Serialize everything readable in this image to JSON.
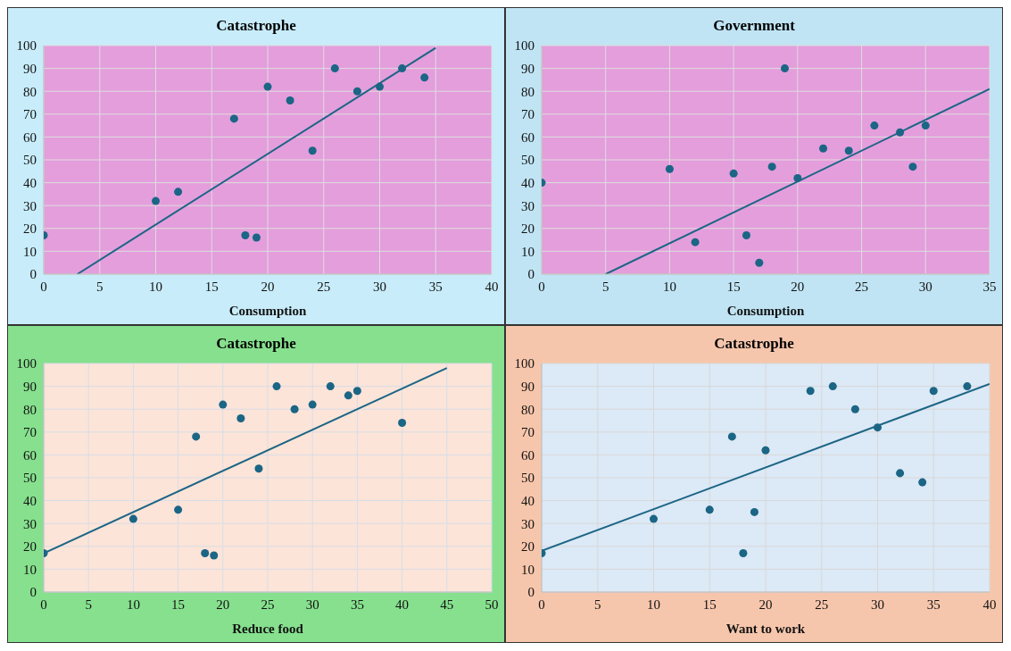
{
  "chart_data": [
    {
      "type": "scatter",
      "title": "Catastrophe",
      "xlabel": "Consumption",
      "xlim": [
        0,
        40
      ],
      "xticks": [
        0,
        5,
        10,
        15,
        20,
        25,
        30,
        35,
        40
      ],
      "ylim": [
        0,
        100
      ],
      "yticks": [
        0,
        10,
        20,
        30,
        40,
        50,
        60,
        70,
        80,
        90,
        100
      ],
      "grid": true,
      "series": [
        {
          "marker": "circle",
          "color": "#1b6585",
          "x": [
            0,
            10,
            12,
            17,
            18,
            19,
            20,
            22,
            24,
            26,
            28,
            30,
            32,
            34
          ],
          "values": [
            17,
            32,
            36,
            68,
            17,
            16,
            82,
            76,
            54,
            90,
            80,
            82,
            90,
            86
          ]
        },
        {
          "type": "line",
          "marker": "none",
          "color": "#1b6585",
          "x": [
            3,
            35
          ],
          "values": [
            0,
            99
          ]
        }
      ]
    },
    {
      "type": "scatter",
      "title": "Government",
      "xlabel": "Consumption",
      "xlim": [
        0,
        35
      ],
      "xticks": [
        0,
        5,
        10,
        15,
        20,
        25,
        30,
        35
      ],
      "ylim": [
        0,
        100
      ],
      "yticks": [
        0,
        10,
        20,
        30,
        40,
        50,
        60,
        70,
        80,
        90,
        100
      ],
      "grid": true,
      "series": [
        {
          "marker": "circle",
          "color": "#1b6585",
          "x": [
            0,
            10,
            12,
            15,
            16,
            17,
            18,
            19,
            20,
            22,
            24,
            26,
            28,
            29,
            30
          ],
          "values": [
            40,
            46,
            14,
            44,
            17,
            5,
            47,
            90,
            42,
            55,
            54,
            65,
            62,
            47,
            65
          ]
        },
        {
          "type": "line",
          "marker": "none",
          "color": "#1b6585",
          "x": [
            5,
            35
          ],
          "values": [
            0,
            81
          ]
        }
      ]
    },
    {
      "type": "scatter",
      "title": "Catastrophe",
      "xlabel": "Reduce food",
      "xlim": [
        0,
        50
      ],
      "xticks": [
        0,
        5,
        10,
        15,
        20,
        25,
        30,
        35,
        40,
        45,
        50
      ],
      "ylim": [
        0,
        100
      ],
      "yticks": [
        0,
        10,
        20,
        30,
        40,
        50,
        60,
        70,
        80,
        90,
        100
      ],
      "grid": true,
      "series": [
        {
          "marker": "circle",
          "color": "#1b6585",
          "x": [
            0,
            10,
            15,
            17,
            18,
            19,
            20,
            22,
            24,
            26,
            28,
            30,
            32,
            34,
            35,
            40
          ],
          "values": [
            17,
            32,
            36,
            68,
            17,
            16,
            82,
            76,
            54,
            90,
            80,
            82,
            90,
            86,
            88,
            74
          ]
        },
        {
          "type": "line",
          "marker": "none",
          "color": "#1b6585",
          "x": [
            0,
            45
          ],
          "values": [
            17,
            98
          ]
        }
      ]
    },
    {
      "type": "scatter",
      "title": "Catastrophe",
      "xlabel": "Want to work",
      "xlim": [
        0,
        40
      ],
      "xticks": [
        0,
        5,
        10,
        15,
        20,
        25,
        30,
        35,
        40
      ],
      "ylim": [
        0,
        100
      ],
      "yticks": [
        0,
        10,
        20,
        30,
        40,
        50,
        60,
        70,
        80,
        90,
        100
      ],
      "grid": true,
      "series": [
        {
          "marker": "circle",
          "color": "#1b6585",
          "x": [
            0,
            10,
            15,
            17,
            18,
            19,
            20,
            24,
            26,
            28,
            30,
            32,
            34,
            35,
            38
          ],
          "values": [
            17,
            32,
            36,
            68,
            17,
            35,
            62,
            88,
            90,
            80,
            72,
            52,
            48,
            88,
            90
          ]
        },
        {
          "type": "line",
          "marker": "none",
          "color": "#1b6585",
          "x": [
            0,
            40
          ],
          "values": [
            18,
            91
          ]
        }
      ]
    }
  ]
}
